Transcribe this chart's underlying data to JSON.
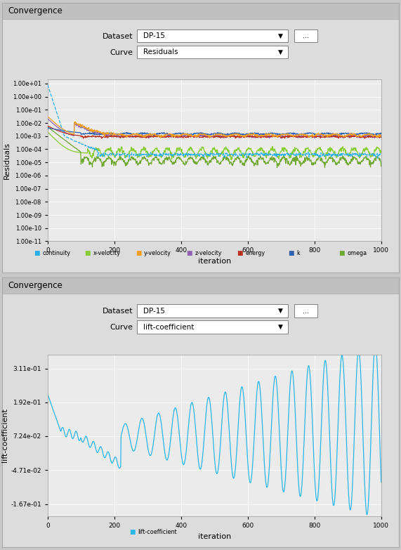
{
  "fig_width": 5.71,
  "fig_height": 7.83,
  "dpi": 100,
  "bg_color": "#c8c8c8",
  "panel_bg": "#dcdcdc",
  "plot_bg": "#ebebeb",
  "grid_color": "#ffffff",
  "panel1": {
    "title": "Convergence",
    "xlabel": "iteration",
    "ylabel": "Residuals",
    "xlim": [
      0,
      1000
    ],
    "legend": [
      "continuity",
      "x-velocity",
      "y-velocity",
      "z-velocity",
      "energy",
      "k",
      "omega"
    ],
    "colors": {
      "continuity": "#29b0e8",
      "x-velocity": "#88cc33",
      "y-velocity": "#f0a020",
      "z-velocity": "#9060b0",
      "energy": "#b83020",
      "k": "#3060b0",
      "omega": "#70a830"
    }
  },
  "panel2": {
    "title": "Convergence",
    "xlabel": "iteration",
    "ylabel": "lift-coefficient",
    "xlim": [
      0,
      1000
    ],
    "ylim": [
      -0.21,
      0.36
    ],
    "yticks": [
      0.311,
      0.192,
      0.0724,
      -0.0471,
      -0.167
    ],
    "ytick_labels": [
      "3.11e-01",
      "1.92e-01",
      "7.24e-02",
      "-4.71e-02",
      "-1.67e-01"
    ],
    "color": "#29b7e8"
  }
}
